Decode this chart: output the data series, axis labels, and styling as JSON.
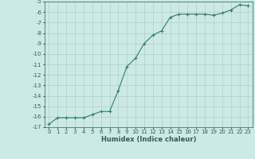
{
  "x": [
    0,
    1,
    2,
    3,
    4,
    5,
    6,
    7,
    8,
    9,
    10,
    11,
    12,
    13,
    14,
    15,
    16,
    17,
    18,
    19,
    20,
    21,
    22,
    23
  ],
  "y": [
    -16.7,
    -16.1,
    -16.1,
    -16.1,
    -16.1,
    -15.8,
    -15.5,
    -15.5,
    -13.5,
    -11.2,
    -10.4,
    -9.0,
    -8.2,
    -7.8,
    -6.5,
    -6.2,
    -6.2,
    -6.2,
    -6.2,
    -6.3,
    -6.1,
    -5.8,
    -5.3,
    -5.4
  ],
  "xlim": [
    -0.5,
    23.5
  ],
  "ylim_min": -17,
  "ylim_max": -5,
  "yticks": [
    -5,
    -6,
    -7,
    -8,
    -9,
    -10,
    -11,
    -12,
    -13,
    -14,
    -15,
    -16,
    -17
  ],
  "xticks": [
    0,
    1,
    2,
    3,
    4,
    5,
    6,
    7,
    8,
    9,
    10,
    11,
    12,
    13,
    14,
    15,
    16,
    17,
    18,
    19,
    20,
    21,
    22,
    23
  ],
  "xlabel": "Humidex (Indice chaleur)",
  "line_color": "#2e7d6e",
  "marker": "+",
  "bg_color": "#cce9e6",
  "grid_color": "#b0ceca",
  "font_color": "#2e5f58",
  "tick_fontsize": 5.0,
  "xlabel_fontsize": 6.0
}
